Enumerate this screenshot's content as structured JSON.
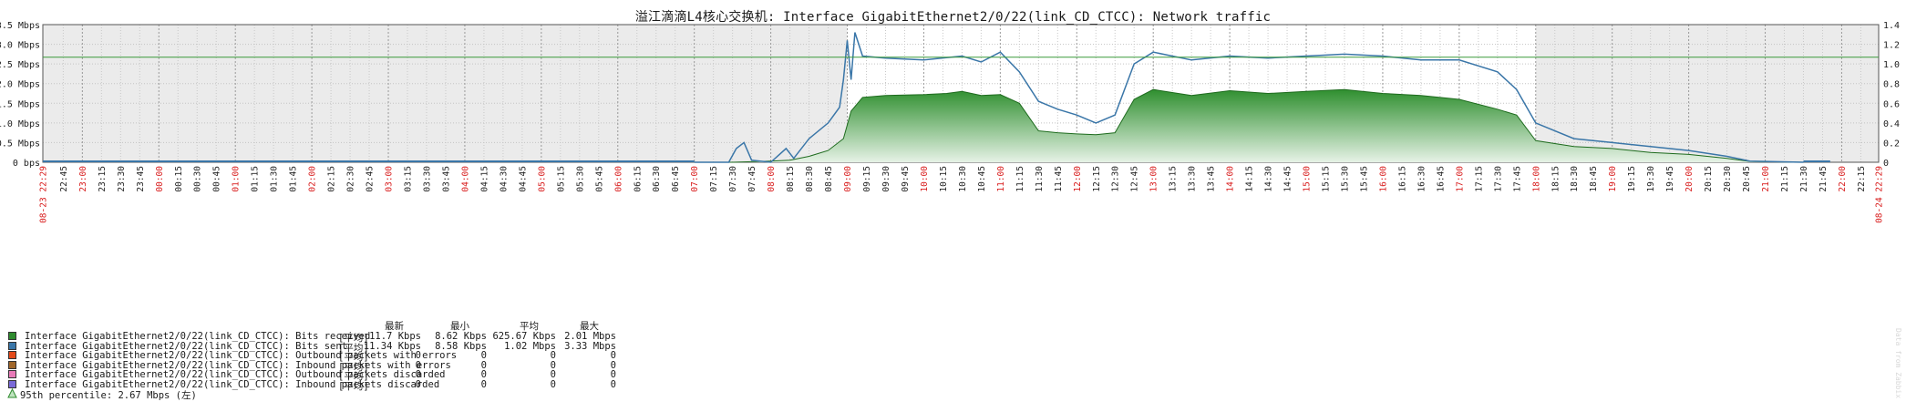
{
  "title": "溢江滴滴L4核心交换机: Interface GigabitEthernet2/0/22(link_CD_CTCC): Network traffic",
  "chart_data": {
    "type": "area",
    "left_axis": {
      "ticks": [
        "0 bps",
        "0.5 Mbps",
        "1.0 Mbps",
        "1.5 Mbps",
        "2.0 Mbps",
        "2.5 Mbps",
        "3.0 Mbps",
        "3.5 Mbps"
      ],
      "max": 3.5,
      "unit": "Mbps"
    },
    "right_axis": {
      "ticks": [
        "0",
        "0.2",
        "0.4",
        "0.6",
        "0.8",
        "1.0",
        "1.2",
        "1.4"
      ],
      "max": 1.4
    },
    "percentile_line": 2.67,
    "x_start_label": "08-23 22:29",
    "x_end_label": "08-24 22:29",
    "x_ticks": [
      "22:45",
      "23:00",
      "23:15",
      "23:30",
      "23:45",
      "00:00",
      "00:15",
      "00:30",
      "00:45",
      "01:00",
      "01:15",
      "01:30",
      "01:45",
      "02:00",
      "02:15",
      "02:30",
      "02:45",
      "03:00",
      "03:15",
      "03:30",
      "03:45",
      "04:00",
      "04:15",
      "04:30",
      "04:45",
      "05:00",
      "05:15",
      "05:30",
      "05:45",
      "06:00",
      "06:15",
      "06:30",
      "06:45",
      "07:00",
      "07:15",
      "07:30",
      "07:45",
      "08:00",
      "08:15",
      "08:30",
      "08:45",
      "09:00",
      "09:15",
      "09:30",
      "09:45",
      "10:00",
      "10:15",
      "10:30",
      "10:45",
      "11:00",
      "11:15",
      "11:30",
      "11:45",
      "12:00",
      "12:15",
      "12:30",
      "12:45",
      "13:00",
      "13:15",
      "13:30",
      "13:45",
      "14:00",
      "14:15",
      "14:30",
      "14:45",
      "15:00",
      "15:15",
      "15:30",
      "15:45",
      "16:00",
      "16:15",
      "16:30",
      "16:45",
      "17:00",
      "17:15",
      "17:30",
      "17:45",
      "18:00",
      "18:15",
      "18:30",
      "18:45",
      "19:00",
      "19:15",
      "19:30",
      "19:45",
      "20:00",
      "20:15",
      "20:30",
      "20:45",
      "21:00",
      "21:15",
      "21:30",
      "21:45",
      "22:00",
      "22:15"
    ],
    "x_ticks_hour": [
      "23:00",
      "00:00",
      "01:00",
      "02:00",
      "03:00",
      "04:00",
      "05:00",
      "06:00",
      "07:00",
      "08:00",
      "09:00",
      "10:00",
      "11:00",
      "12:00",
      "13:00",
      "14:00",
      "15:00",
      "16:00",
      "17:00",
      "18:00",
      "19:00",
      "20:00",
      "21:00",
      "22:00"
    ],
    "series": [
      {
        "name": "Interface GigabitEthernet2/0/22(link_CD_CTCC): Bits received",
        "color": "#2e8b2e",
        "points": [
          [
            7.0,
            0.0
          ],
          [
            7.5,
            0.0
          ],
          [
            8.0,
            0.03
          ],
          [
            8.25,
            0.05
          ],
          [
            8.5,
            0.15
          ],
          [
            8.75,
            0.3
          ],
          [
            8.95,
            0.6
          ],
          [
            9.05,
            1.3
          ],
          [
            9.2,
            1.65
          ],
          [
            9.5,
            1.7
          ],
          [
            10.0,
            1.72
          ],
          [
            10.3,
            1.75
          ],
          [
            10.5,
            1.8
          ],
          [
            10.75,
            1.7
          ],
          [
            11.0,
            1.72
          ],
          [
            11.25,
            1.5
          ],
          [
            11.5,
            0.8
          ],
          [
            11.75,
            0.75
          ],
          [
            12.0,
            0.72
          ],
          [
            12.25,
            0.7
          ],
          [
            12.5,
            0.75
          ],
          [
            12.75,
            1.6
          ],
          [
            13.0,
            1.85
          ],
          [
            13.5,
            1.7
          ],
          [
            14.0,
            1.82
          ],
          [
            14.5,
            1.75
          ],
          [
            15.0,
            1.8
          ],
          [
            15.5,
            1.85
          ],
          [
            16.0,
            1.75
          ],
          [
            16.5,
            1.7
          ],
          [
            17.0,
            1.6
          ],
          [
            17.5,
            1.35
          ],
          [
            17.75,
            1.2
          ],
          [
            18.0,
            0.55
          ],
          [
            18.5,
            0.4
          ],
          [
            19.0,
            0.35
          ],
          [
            19.5,
            0.25
          ],
          [
            20.0,
            0.2
          ],
          [
            20.5,
            0.1
          ],
          [
            20.8,
            0.02
          ],
          [
            21.5,
            0.0
          ]
        ]
      },
      {
        "name": "Interface GigabitEthernet2/0/22(link_CD_CTCC): Bits sent",
        "color": "#3a76a8",
        "points": [
          [
            7.0,
            0.0
          ],
          [
            7.45,
            0.0
          ],
          [
            7.55,
            0.35
          ],
          [
            7.65,
            0.5
          ],
          [
            7.75,
            0.05
          ],
          [
            8.0,
            0.0
          ],
          [
            8.2,
            0.35
          ],
          [
            8.3,
            0.1
          ],
          [
            8.5,
            0.6
          ],
          [
            8.75,
            1.0
          ],
          [
            8.9,
            1.4
          ],
          [
            8.95,
            2.1
          ],
          [
            9.0,
            3.1
          ],
          [
            9.05,
            2.1
          ],
          [
            9.1,
            3.3
          ],
          [
            9.2,
            2.7
          ],
          [
            9.5,
            2.65
          ],
          [
            10.0,
            2.6
          ],
          [
            10.5,
            2.7
          ],
          [
            10.75,
            2.55
          ],
          [
            11.0,
            2.8
          ],
          [
            11.25,
            2.3
          ],
          [
            11.5,
            1.55
          ],
          [
            11.75,
            1.35
          ],
          [
            12.0,
            1.2
          ],
          [
            12.25,
            1.0
          ],
          [
            12.5,
            1.2
          ],
          [
            12.75,
            2.5
          ],
          [
            13.0,
            2.8
          ],
          [
            13.5,
            2.6
          ],
          [
            14.0,
            2.7
          ],
          [
            14.5,
            2.65
          ],
          [
            15.0,
            2.7
          ],
          [
            15.5,
            2.75
          ],
          [
            16.0,
            2.7
          ],
          [
            16.5,
            2.6
          ],
          [
            17.0,
            2.6
          ],
          [
            17.5,
            2.3
          ],
          [
            17.75,
            1.85
          ],
          [
            18.0,
            1.0
          ],
          [
            18.5,
            0.6
          ],
          [
            19.0,
            0.5
          ],
          [
            19.5,
            0.4
          ],
          [
            20.0,
            0.3
          ],
          [
            20.5,
            0.15
          ],
          [
            20.8,
            0.03
          ],
          [
            21.5,
            0.0
          ]
        ]
      }
    ]
  },
  "legend": {
    "headers": [
      "最新",
      "最小",
      "平均",
      "最大"
    ],
    "items": [
      {
        "label": "Interface GigabitEthernet2/0/22(link_CD_CTCC): Bits received",
        "fn": "[平均]",
        "last": "11.7 Kbps",
        "min": "8.62 Kbps",
        "avg": "625.67 Kbps",
        "max": "2.01 Mbps",
        "color": "#2e8b2e"
      },
      {
        "label": "Interface GigabitEthernet2/0/22(link_CD_CTCC): Bits sent",
        "fn": "[平均]",
        "last": "11.34 Kbps",
        "min": "8.58 Kbps",
        "avg": "1.02 Mbps",
        "max": "3.33 Mbps",
        "color": "#3a76a8"
      },
      {
        "label": "Interface GigabitEthernet2/0/22(link_CD_CTCC): Outbound packets with errors",
        "fn": "[平均]",
        "last": "0",
        "min": "0",
        "avg": "0",
        "max": "0",
        "color": "#e34a1a"
      },
      {
        "label": "Interface GigabitEthernet2/0/22(link_CD_CTCC): Inbound packets with errors",
        "fn": "[平均]",
        "last": "0",
        "min": "0",
        "avg": "0",
        "max": "0",
        "color": "#a0662a"
      },
      {
        "label": "Interface GigabitEthernet2/0/22(link_CD_CTCC): Outbound packets discarded",
        "fn": "[平均]",
        "last": "0",
        "min": "0",
        "avg": "0",
        "max": "0",
        "color": "#e87ab8"
      },
      {
        "label": "Interface GigabitEthernet2/0/22(link_CD_CTCC): Inbound packets discarded",
        "fn": "[平均]",
        "last": "0",
        "min": "0",
        "avg": "0",
        "max": "0",
        "color": "#7a6ad8"
      }
    ],
    "percentile_label": "95th percentile: 2.67 Mbps (左)"
  },
  "watermark": "Data from Zabbix"
}
